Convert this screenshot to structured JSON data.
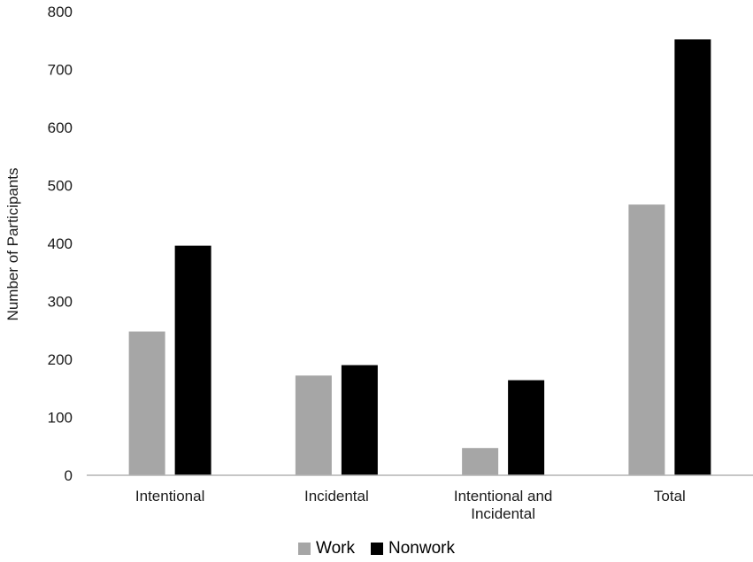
{
  "chart_data": {
    "type": "bar",
    "title": "",
    "xlabel": "",
    "ylabel": "Number of Participants",
    "ylim": [
      0,
      800
    ],
    "yticks": [
      0,
      100,
      200,
      300,
      400,
      500,
      600,
      700,
      800
    ],
    "grid": false,
    "legend_position": "bottom",
    "categories": [
      [
        "Intentional"
      ],
      [
        "Incidental"
      ],
      [
        "Intentional and",
        "Incidental"
      ],
      [
        "Total"
      ]
    ],
    "series": [
      {
        "name": "Work",
        "color": "#a6a6a6",
        "values": [
          248,
          172,
          47,
          467
        ]
      },
      {
        "name": "Nonwork",
        "color": "#000000",
        "values": [
          396,
          190,
          164,
          752
        ]
      }
    ]
  }
}
